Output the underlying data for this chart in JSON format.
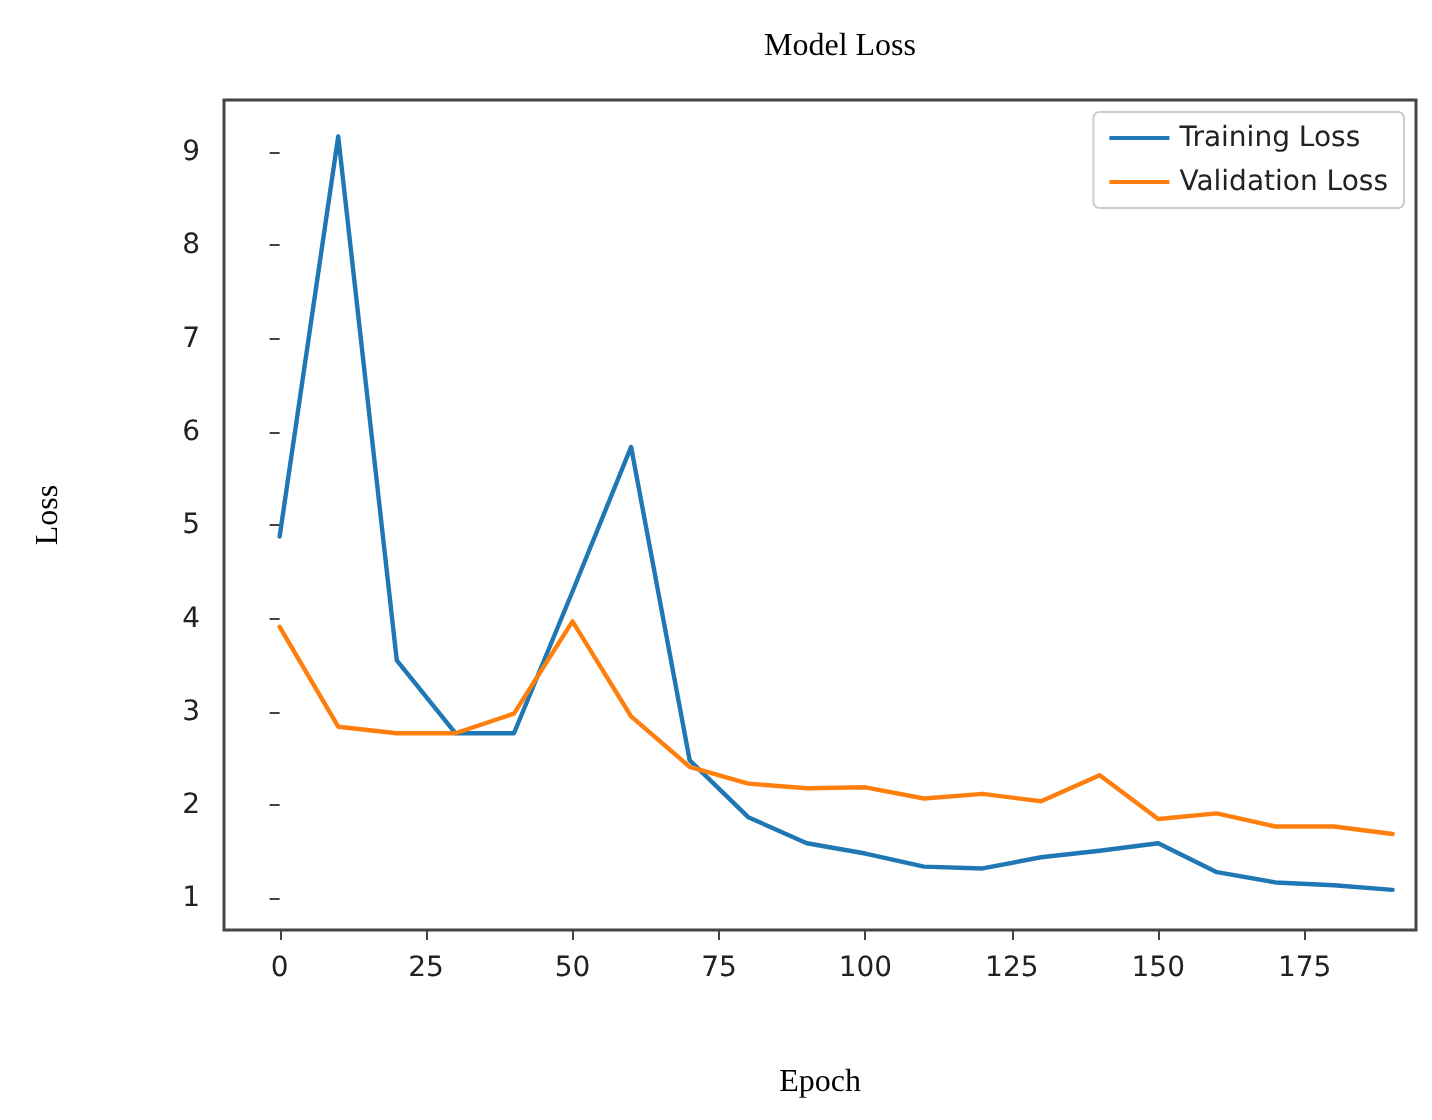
{
  "chart_data": {
    "type": "line",
    "title": "Model Loss",
    "xlabel": "Epoch",
    "ylabel": "Loss",
    "x": [
      0,
      10,
      20,
      30,
      40,
      50,
      60,
      70,
      80,
      90,
      100,
      110,
      120,
      130,
      140,
      150,
      160,
      170,
      180,
      190
    ],
    "series": [
      {
        "name": "Training Loss",
        "color": "#1f77b4",
        "values": [
          4.88,
          9.17,
          3.55,
          2.77,
          2.77,
          4.29,
          5.84,
          2.48,
          1.87,
          1.59,
          1.48,
          1.34,
          1.32,
          1.44,
          1.51,
          1.59,
          1.28,
          1.17,
          1.14,
          1.09
        ]
      },
      {
        "name": "Validation Loss",
        "color": "#ff7f0e",
        "values": [
          3.91,
          2.84,
          2.77,
          2.77,
          2.98,
          3.97,
          2.95,
          2.41,
          2.23,
          2.18,
          2.19,
          2.07,
          2.12,
          2.04,
          2.32,
          1.85,
          1.91,
          1.77,
          1.77,
          1.69
        ]
      }
    ],
    "xlim": [
      -9.5,
      194
    ],
    "xticks": [
      0,
      25,
      50,
      75,
      100,
      125,
      150,
      175
    ],
    "ylim": [
      0.66,
      9.56
    ],
    "yticks": [
      1,
      2,
      3,
      4,
      5,
      6,
      7,
      8,
      9
    ],
    "grid": false,
    "legend": "top right",
    "marker": "none",
    "line_style": "solid"
  }
}
